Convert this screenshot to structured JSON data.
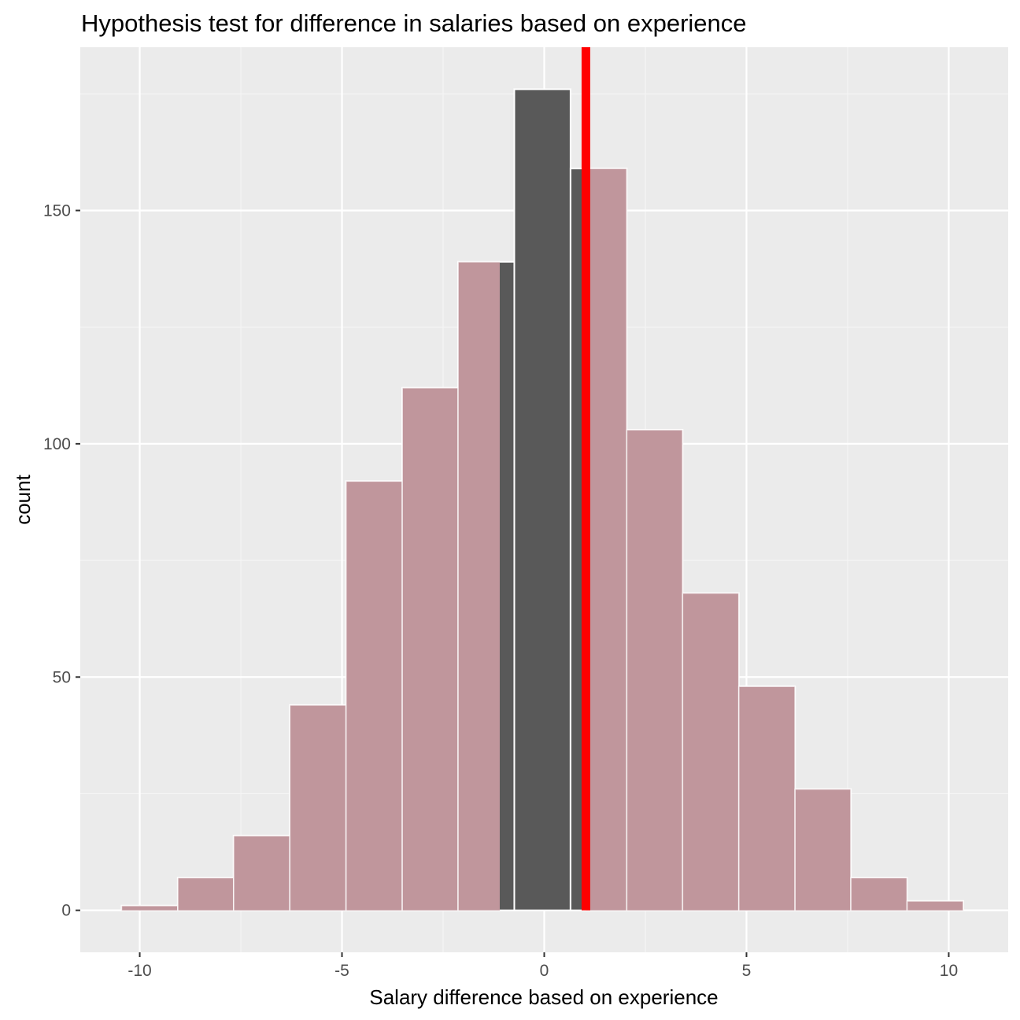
{
  "chart_data": {
    "type": "bar",
    "title": "Hypothesis test for difference in salaries based on experience",
    "xlabel": "Salary difference based on experience",
    "ylabel": "count",
    "xlim": [
      -11.47,
      11.47
    ],
    "ylim": [
      -9,
      185
    ],
    "x_ticks": [
      -10,
      -5,
      0,
      5,
      10
    ],
    "x_tick_labels": [
      "-10",
      "-5",
      "0",
      "5",
      "10"
    ],
    "y_ticks": [
      0,
      50,
      100,
      150
    ],
    "y_tick_labels": [
      "0",
      "50",
      "100",
      "150"
    ],
    "bin_edges": [
      -10.45,
      -9.06,
      -7.68,
      -6.29,
      -4.9,
      -3.51,
      -2.13,
      -0.74,
      0.65,
      2.04,
      3.42,
      4.81,
      6.2,
      7.58,
      8.97,
      10.36
    ],
    "counts": [
      1,
      7,
      16,
      44,
      92,
      112,
      139,
      176,
      159,
      103,
      68,
      48,
      26,
      7,
      2
    ],
    "observed_statistic": 1.03,
    "shaded_interval": [
      -1.1,
      1.03
    ],
    "grid": true,
    "colors": {
      "panel_background": "#ebebeb",
      "grid_major": "#ffffff",
      "grid_minor": "#f5f5f5",
      "bar_fill": "#595959",
      "bar_border": "#ffffff",
      "shade_fill": "#c0969c",
      "observed_line": "#ff0000"
    }
  }
}
